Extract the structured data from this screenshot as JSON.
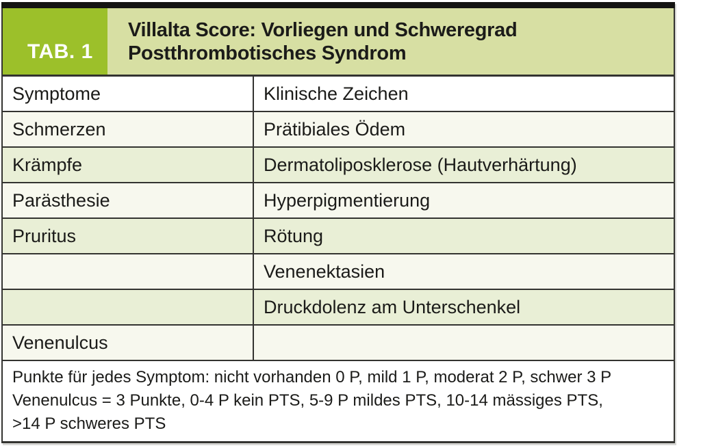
{
  "table": {
    "tag_label": "TAB. 1",
    "title_lines": [
      "Villalta Score: Vorliegen und Schweregrad",
      "Postthrombotisches Syndrom"
    ],
    "column_headers": {
      "symptoms": "Symptome",
      "signs": "Klinische Zeichen"
    },
    "rows": [
      {
        "symptom": "Schmerzen",
        "sign": "Prätibiales Ödem"
      },
      {
        "symptom": "Krämpfe",
        "sign": "Dermatoliposklerose (Hautverhärtung)"
      },
      {
        "symptom": "Parästhesie",
        "sign": "Hyperpigmentierung"
      },
      {
        "symptom": "Pruritus",
        "sign": "Rötung"
      },
      {
        "symptom": "",
        "sign": "Venenektasien"
      },
      {
        "symptom": "",
        "sign": "Druckdolenz am Unterschenkel"
      },
      {
        "symptom": "Venenulcus",
        "sign": ""
      }
    ],
    "footnote_lines": [
      "Punkte für jedes Symptom: nicht vorhanden 0 P, mild 1 P, moderat 2 P, schwer 3 P",
      "Venenulcus = 3 Punkte, 0-4 P kein PTS, 5-9 P mildes PTS, 10-14 mässiges PTS,",
      ">14 P schweres PTS"
    ]
  },
  "colors": {
    "accent-green": "#9cc02a",
    "band-green": "#d7dfa3",
    "row-green": "#e9efd6",
    "row-tint": "#f7f8ee",
    "border-dark": "#333330",
    "bar-black": "#141412",
    "text-dark": "#1b1b19"
  }
}
